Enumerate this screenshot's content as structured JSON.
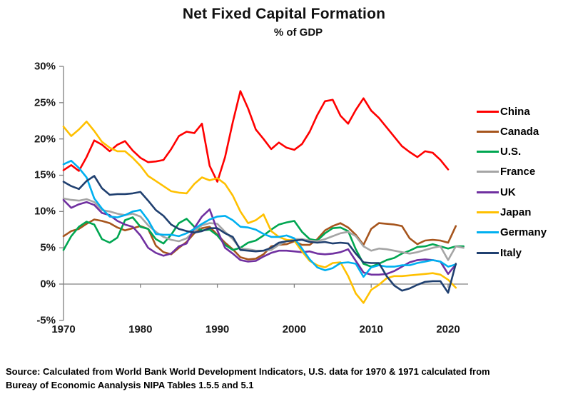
{
  "header": {
    "title": "Net Fixed Capital Formation",
    "subtitle": "% of GDP"
  },
  "footer": {
    "source_line1": "Source:  Calculated from World Bank World Development Indicators, U.S. data for 1970 & 1971 calculated from",
    "source_line2": "Bureay of Economic Aanalysis NIPA Tables 1.5.5 and 5.1"
  },
  "chart_data": {
    "type": "line",
    "title": "Net Fixed Capital Formation",
    "subtitle": "% of GDP",
    "xlabel": "",
    "ylabel": "",
    "grid": false,
    "legend_position": "right",
    "x_start_year": 1970,
    "x_end_year": 2022,
    "x_tick_years": [
      1970,
      1980,
      1990,
      2000,
      2010,
      2020
    ],
    "y_ticks": [
      {
        "value": 30,
        "label": "30%"
      },
      {
        "value": 25,
        "label": "25%"
      },
      {
        "value": 20,
        "label": "20%"
      },
      {
        "value": 15,
        "label": "15%"
      },
      {
        "value": 10,
        "label": "10%"
      },
      {
        "value": 5,
        "label": "5%"
      },
      {
        "value": 0,
        "label": "0%"
      },
      {
        "value": -5,
        "label": "-5%"
      }
    ],
    "ylim": [
      -5,
      30
    ],
    "axis_color": "#808080",
    "zero_line_at": 0,
    "series": [
      {
        "name": "China",
        "color": "#FF0000",
        "values": [
          15.7,
          16.4,
          15.6,
          17.5,
          19.8,
          19.2,
          18.3,
          19.2,
          19.7,
          18.4,
          17.4,
          16.8,
          16.9,
          17.1,
          18.6,
          20.4,
          21.0,
          20.8,
          22.1,
          16.3,
          14.1,
          17.5,
          22.3,
          26.6,
          24.2,
          21.3,
          20.0,
          18.6,
          19.5,
          18.8,
          18.5,
          19.3,
          21.0,
          23.3,
          25.2,
          25.4,
          23.2,
          22.1,
          24.0,
          25.6,
          23.9,
          22.9,
          21.6,
          20.3,
          19.0,
          18.2,
          17.5,
          18.3,
          18.1,
          17.1,
          15.8,
          null,
          null
        ]
      },
      {
        "name": "Canada",
        "color": "#A6551D",
        "values": [
          6.6,
          7.3,
          7.6,
          8.3,
          8.9,
          8.7,
          8.4,
          7.8,
          7.4,
          7.7,
          8.0,
          7.6,
          5.3,
          4.4,
          4.1,
          5.0,
          5.8,
          7.0,
          7.7,
          7.9,
          6.8,
          5.7,
          4.8,
          3.7,
          3.4,
          3.5,
          4.1,
          5.2,
          5.4,
          5.5,
          5.9,
          5.4,
          5.4,
          6.2,
          7.4,
          8.0,
          8.4,
          7.8,
          6.8,
          5.4,
          7.6,
          8.4,
          8.3,
          8.2,
          8.0,
          6.3,
          5.5,
          6.0,
          6.1,
          6.0,
          5.7,
          8.0,
          null
        ]
      },
      {
        "name": "U.S.",
        "color": "#00A651",
        "values": [
          4.7,
          6.6,
          7.9,
          8.6,
          8.2,
          6.2,
          5.7,
          6.4,
          8.8,
          9.2,
          7.9,
          7.6,
          6.2,
          5.6,
          6.8,
          8.4,
          9.0,
          7.9,
          7.4,
          7.5,
          6.7,
          5.4,
          4.7,
          5.0,
          5.7,
          6.0,
          6.7,
          7.5,
          8.2,
          8.5,
          8.7,
          7.2,
          6.2,
          6.0,
          7.0,
          7.7,
          7.8,
          7.3,
          4.8,
          2.8,
          2.4,
          2.8,
          3.3,
          3.6,
          4.2,
          4.6,
          5.1,
          5.2,
          5.5,
          5.2,
          4.9,
          5.2,
          5.2
        ]
      },
      {
        "name": "France",
        "color": "#A5A5A5",
        "values": [
          11.8,
          11.6,
          11.5,
          11.7,
          11.3,
          10.2,
          10.0,
          9.7,
          9.5,
          9.7,
          9.3,
          8.1,
          7.2,
          6.5,
          6.1,
          5.9,
          6.3,
          7.3,
          8.1,
          8.4,
          8.3,
          7.2,
          6.2,
          4.9,
          4.8,
          4.6,
          4.6,
          4.7,
          5.4,
          5.9,
          6.2,
          6.2,
          6.0,
          5.9,
          6.2,
          6.6,
          7.0,
          7.2,
          6.6,
          5.2,
          4.6,
          4.9,
          4.8,
          4.6,
          4.4,
          4.2,
          4.4,
          4.7,
          5.0,
          5.2,
          3.3,
          5.2,
          5.0
        ]
      },
      {
        "name": "UK",
        "color": "#7030A0",
        "values": [
          11.6,
          10.5,
          11.0,
          11.3,
          10.9,
          9.8,
          9.5,
          8.7,
          8.2,
          7.9,
          6.7,
          5.0,
          4.3,
          3.9,
          4.2,
          5.2,
          5.6,
          7.7,
          9.3,
          10.3,
          7.4,
          5.0,
          4.2,
          3.3,
          3.1,
          3.2,
          3.8,
          4.3,
          4.6,
          4.6,
          4.5,
          4.4,
          4.5,
          4.2,
          4.1,
          4.2,
          4.4,
          4.8,
          3.2,
          1.6,
          1.3,
          1.3,
          1.4,
          1.8,
          2.4,
          3.0,
          3.3,
          3.4,
          3.3,
          3.1,
          1.4,
          2.7,
          null
        ]
      },
      {
        "name": "Japan",
        "color": "#FFC000",
        "values": [
          21.7,
          20.4,
          21.3,
          22.4,
          21.1,
          19.6,
          18.8,
          18.3,
          18.3,
          17.4,
          16.3,
          14.9,
          14.2,
          13.5,
          12.8,
          12.6,
          12.5,
          13.8,
          14.7,
          14.3,
          14.6,
          13.8,
          12.2,
          10.0,
          8.4,
          8.8,
          9.6,
          7.3,
          6.5,
          6.1,
          6.0,
          4.5,
          3.2,
          2.6,
          2.3,
          2.9,
          3.0,
          1.1,
          -1.3,
          -2.6,
          -0.8,
          -0.1,
          0.8,
          1.1,
          1.1,
          1.2,
          1.3,
          1.4,
          1.5,
          1.3,
          0.6,
          -0.5,
          null
        ]
      },
      {
        "name": "Germany",
        "color": "#00B0F0",
        "values": [
          16.5,
          17.0,
          16.0,
          14.7,
          11.8,
          10.4,
          9.3,
          9.2,
          9.5,
          10.0,
          10.2,
          8.8,
          6.9,
          6.8,
          6.8,
          6.6,
          7.0,
          7.6,
          8.3,
          8.9,
          9.3,
          9.4,
          8.8,
          7.9,
          7.8,
          7.5,
          6.9,
          6.5,
          6.5,
          6.7,
          6.3,
          4.9,
          3.4,
          2.3,
          1.9,
          2.2,
          2.9,
          3.0,
          2.8,
          1.0,
          2.3,
          2.6,
          2.4,
          2.4,
          2.6,
          2.6,
          2.9,
          3.1,
          3.3,
          3.1,
          2.4,
          2.7,
          null
        ]
      },
      {
        "name": "Italy",
        "color": "#204070",
        "values": [
          14.1,
          13.5,
          13.1,
          14.2,
          14.9,
          13.2,
          12.3,
          12.4,
          12.4,
          12.5,
          12.7,
          11.5,
          10.2,
          9.4,
          8.2,
          7.6,
          7.3,
          7.1,
          7.3,
          7.7,
          7.7,
          7.0,
          6.5,
          4.7,
          4.6,
          4.5,
          4.6,
          5.0,
          5.7,
          5.9,
          6.0,
          6.1,
          5.8,
          5.7,
          5.8,
          5.6,
          5.7,
          5.6,
          4.2,
          3.0,
          2.9,
          2.9,
          1.1,
          -0.2,
          -0.9,
          -0.6,
          -0.1,
          0.3,
          0.4,
          0.4,
          -1.2,
          2.8,
          null
        ]
      }
    ]
  }
}
